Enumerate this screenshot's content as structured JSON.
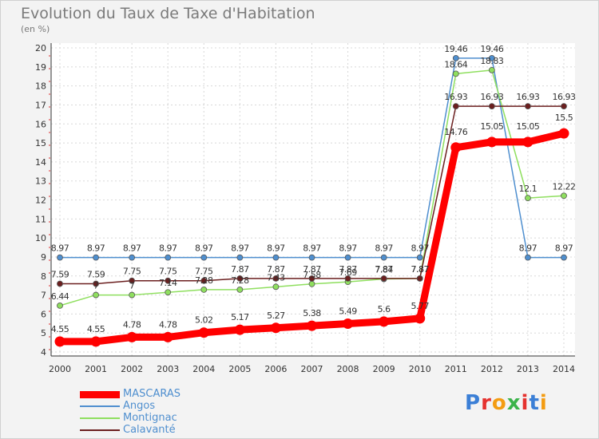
{
  "chart_data": {
    "type": "line",
    "title": "Evolution du Taux de Taxe d'Habitation",
    "subtitle": "(en %)",
    "x": [
      "2000",
      "2001",
      "2002",
      "2003",
      "2004",
      "2005",
      "2006",
      "2007",
      "2008",
      "2009",
      "2010",
      "2011",
      "2012",
      "2013",
      "2014"
    ],
    "ylim": [
      4,
      20
    ],
    "yticks": [
      "4",
      "5",
      "6",
      "7",
      "8",
      "9",
      "10",
      "11",
      "12",
      "13",
      "14",
      "15",
      "16",
      "17",
      "18",
      "19",
      "20"
    ],
    "series": [
      {
        "name": "MASCARAS",
        "color": "#ff0000",
        "values": [
          4.55,
          4.55,
          4.78,
          4.78,
          5.02,
          5.17,
          5.27,
          5.38,
          5.49,
          5.6,
          5.77,
          14.76,
          15.05,
          15.05,
          15.5
        ],
        "labels": [
          "4.55",
          "4.55",
          "4.78",
          "4.78",
          "5.02",
          "5.17",
          "5.27",
          "5.38",
          "5.49",
          "5.6",
          "5.77",
          "14.76",
          "15.05",
          "15.05",
          "15.5"
        ]
      },
      {
        "name": "Angos",
        "color": "#4f8fcf",
        "values": [
          8.97,
          8.97,
          8.97,
          8.97,
          8.97,
          8.97,
          8.97,
          8.97,
          8.97,
          8.97,
          8.97,
          19.46,
          19.46,
          8.97,
          8.97
        ],
        "labels": [
          "8.97",
          "8.97",
          "8.97",
          "8.97",
          "8.97",
          "8.97",
          "8.97",
          "8.97",
          "8.97",
          "8.97",
          "8.97",
          "19.46",
          "19.46",
          "8.97",
          "8.97"
        ]
      },
      {
        "name": "Montignac",
        "color": "#8fdf5f",
        "values": [
          6.44,
          7.0,
          7.0,
          7.14,
          7.28,
          7.28,
          7.43,
          7.58,
          7.69,
          7.84,
          7.87,
          18.64,
          18.83,
          12.1,
          12.22
        ],
        "labels": [
          "6.44",
          "7",
          "7",
          "7.14",
          "7.28",
          "7.28",
          "7.43",
          "7.58",
          "7.69",
          "7.84",
          "7.87",
          "18.64",
          "18.83",
          "12.1",
          "12.22"
        ]
      },
      {
        "name": "Calavanté",
        "color": "#6b1f1f",
        "values": [
          7.59,
          7.59,
          7.75,
          7.75,
          7.75,
          7.87,
          7.87,
          7.87,
          7.87,
          7.87,
          7.87,
          16.93,
          16.93,
          16.93,
          16.93
        ],
        "labels": [
          "7.59",
          "7.59",
          "7.75",
          "7.75",
          "7.75",
          "7.87",
          "7.87",
          "7.87",
          "7.87",
          "7.87",
          "7.87",
          "16.93",
          "16.93",
          "16.93",
          "16.93"
        ]
      }
    ],
    "legend_position": "bottom-left"
  },
  "logo": {
    "letters": [
      "P",
      "r",
      "o",
      "x",
      "i",
      "t",
      "i"
    ],
    "colors": [
      "#3b7fd6",
      "#e5322f",
      "#f39c12",
      "#3bb34a",
      "#e5322f",
      "#3b7fd6",
      "#f39c12"
    ]
  }
}
